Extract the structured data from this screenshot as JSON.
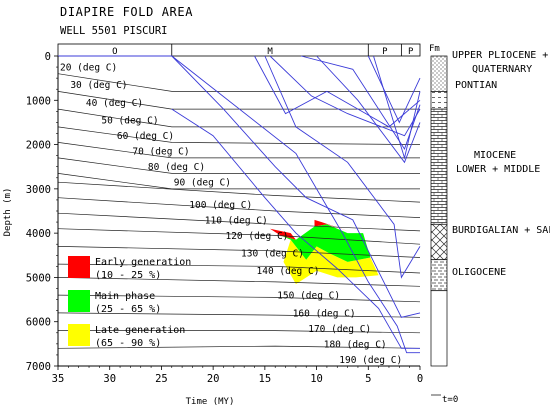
{
  "chart_data": {
    "type": "line",
    "title": "DIAPIRE  FOLD AREA",
    "subtitle": "WELL 5501 PISCURI",
    "xlabel": "Time (MY)",
    "ylabel": "Depth (m)",
    "xlim": [
      35,
      0
    ],
    "ylim": [
      7000,
      0
    ],
    "x_ticks": [
      "35",
      "30",
      "25",
      "20",
      "15",
      "10",
      "5",
      "0"
    ],
    "y_ticks": [
      "0",
      "1000",
      "2000",
      "3000",
      "4000",
      "5000",
      "6000",
      "7000"
    ],
    "periods": [
      {
        "label": "O",
        "from": 35,
        "to": 24
      },
      {
        "label": "M",
        "from": 24,
        "to": 5
      },
      {
        "label": "P",
        "from": 5,
        "to": 1.8
      },
      {
        "label": "P",
        "from": 1.8,
        "to": 0
      }
    ],
    "isotherms": [
      {
        "label": "20 (deg C)",
        "points": [
          [
            35,
            400
          ],
          [
            24,
            800
          ],
          [
            0,
            800
          ]
        ]
      },
      {
        "label": "30 (deg C)",
        "points": [
          [
            35,
            800
          ],
          [
            24,
            1200
          ],
          [
            0,
            1200
          ]
        ]
      },
      {
        "label": "40 (deg C)",
        "points": [
          [
            35,
            1200
          ],
          [
            24,
            1600
          ],
          [
            0,
            1600
          ]
        ]
      },
      {
        "label": "50 (deg C)",
        "points": [
          [
            35,
            1600
          ],
          [
            24,
            1950
          ],
          [
            0,
            2000
          ]
        ]
      },
      {
        "label": "60 (deg C)",
        "points": [
          [
            35,
            1950
          ],
          [
            24,
            2300
          ],
          [
            0,
            2300
          ]
        ]
      },
      {
        "label": "70 (deg C)",
        "points": [
          [
            35,
            2300
          ],
          [
            24,
            2650
          ],
          [
            0,
            2650
          ]
        ]
      },
      {
        "label": "80 (deg C)",
        "points": [
          [
            35,
            2650
          ],
          [
            24,
            3000
          ],
          [
            0,
            3000
          ]
        ]
      },
      {
        "label": "90 (deg C)",
        "points": [
          [
            35,
            2850
          ],
          [
            14,
            3150
          ],
          [
            0,
            3300
          ]
        ]
      },
      {
        "label": "100 (deg C)",
        "points": [
          [
            35,
            3200
          ],
          [
            14,
            3500
          ],
          [
            0,
            3650
          ]
        ]
      },
      {
        "label": "110 (deg C)",
        "points": [
          [
            35,
            3550
          ],
          [
            14,
            3800
          ],
          [
            0,
            3950
          ]
        ]
      },
      {
        "label": "120 (deg C)",
        "points": [
          [
            35,
            3900
          ],
          [
            14,
            4050
          ],
          [
            0,
            4250
          ]
        ]
      },
      {
        "label": "130 (deg C)",
        "points": [
          [
            35,
            4300
          ],
          [
            14,
            4400
          ],
          [
            0,
            4550
          ]
        ]
      },
      {
        "label": "140 (deg C)",
        "points": [
          [
            35,
            4700
          ],
          [
            14,
            4750
          ],
          [
            0,
            4900
          ]
        ]
      },
      {
        "label": "150 (deg C)",
        "points": [
          [
            35,
            5000
          ],
          [
            14,
            5100
          ],
          [
            0,
            5200
          ]
        ]
      },
      {
        "label": "160 (deg C)",
        "points": [
          [
            35,
            5400
          ],
          [
            14,
            5450
          ],
          [
            0,
            5550
          ]
        ]
      },
      {
        "label": "170 (deg C)",
        "points": [
          [
            35,
            5800
          ],
          [
            14,
            5850
          ],
          [
            0,
            5900
          ]
        ]
      },
      {
        "label": "180 (deg C)",
        "points": [
          [
            35,
            6200
          ],
          [
            14,
            6200
          ],
          [
            0,
            6250
          ]
        ]
      },
      {
        "label": "190 (deg C)",
        "points": [
          [
            35,
            6600
          ],
          [
            14,
            6550
          ],
          [
            0,
            6600
          ]
        ]
      }
    ],
    "burial_curves": [
      {
        "points": [
          [
            35,
            0
          ],
          [
            24,
            0
          ],
          [
            12,
            2200
          ],
          [
            7.5,
            4000
          ],
          [
            5,
            5100
          ],
          [
            2.2,
            6100
          ],
          [
            1.3,
            6700
          ],
          [
            0,
            6700
          ]
        ]
      },
      {
        "points": [
          [
            24,
            1200
          ],
          [
            20,
            1800
          ],
          [
            15,
            3200
          ],
          [
            12,
            4000
          ],
          [
            8,
            4800
          ],
          [
            4,
            5700
          ],
          [
            1.8,
            6600
          ],
          [
            0,
            6600
          ]
        ]
      },
      {
        "points": [
          [
            24,
            0
          ],
          [
            19,
            1200
          ],
          [
            14,
            2500
          ],
          [
            11,
            3200
          ],
          [
            6.5,
            3700
          ],
          [
            1.8,
            5900
          ],
          [
            0,
            5800
          ]
        ]
      },
      {
        "points": [
          [
            15,
            0
          ],
          [
            12,
            1600
          ],
          [
            7,
            2400
          ],
          [
            2.5,
            3800
          ],
          [
            1.8,
            5000
          ],
          [
            0,
            4300
          ]
        ]
      },
      {
        "points": [
          [
            5,
            0
          ],
          [
            2,
            1500
          ],
          [
            0,
            500
          ]
        ]
      },
      {
        "points": [
          [
            4.5,
            0
          ],
          [
            1.5,
            2300
          ],
          [
            0,
            800
          ]
        ]
      },
      {
        "points": [
          [
            10,
            0
          ],
          [
            6,
            1000
          ],
          [
            1.5,
            2400
          ],
          [
            0,
            1500
          ]
        ]
      },
      {
        "points": [
          [
            11.5,
            0
          ],
          [
            6.5,
            300
          ],
          [
            1.5,
            2100
          ],
          [
            0,
            1100
          ]
        ]
      },
      {
        "points": [
          [
            16,
            0
          ],
          [
            13,
            1300
          ],
          [
            9,
            800
          ],
          [
            3,
            1600
          ],
          [
            0,
            1000
          ]
        ]
      },
      {
        "points": [
          [
            14.5,
            0
          ],
          [
            10.5,
            900
          ],
          [
            7,
            1300
          ],
          [
            1.5,
            1800
          ],
          [
            0,
            1200
          ]
        ]
      }
    ],
    "generation_zones": [
      {
        "name": "Late generation",
        "range": "(65 - 90 %)",
        "color": "#ffff00",
        "polygon": [
          [
            12.5,
            4150
          ],
          [
            11,
            4600
          ],
          [
            10,
            4300
          ],
          [
            8.8,
            4450
          ],
          [
            7,
            4650
          ],
          [
            4.8,
            4550
          ],
          [
            4,
            4950
          ],
          [
            6.2,
            5000
          ],
          [
            8,
            5000
          ],
          [
            10,
            4850
          ],
          [
            12,
            5150
          ],
          [
            13.2,
            4650
          ]
        ]
      },
      {
        "name": "Main phase",
        "range": "(25 - 65 %)",
        "color": "#00ff00",
        "polygon": [
          [
            13.5,
            4050
          ],
          [
            12,
            4150
          ],
          [
            10.2,
            3850
          ],
          [
            9,
            3800
          ],
          [
            7,
            4000
          ],
          [
            5.5,
            4000
          ],
          [
            4.8,
            4550
          ],
          [
            7,
            4650
          ],
          [
            8.8,
            4450
          ],
          [
            10,
            4300
          ],
          [
            11,
            4600
          ],
          [
            12.5,
            4150
          ]
        ]
      },
      {
        "name": "Early generation",
        "range": "(10 - 25 %)",
        "color": "#ff0000",
        "polygon": [
          [
            14.5,
            3900
          ],
          [
            12.5,
            4000
          ],
          [
            12,
            4150
          ],
          [
            13.5,
            4050
          ]
        ]
      },
      {
        "name": "",
        "range": "",
        "color": "#ff0000",
        "polygon": [
          [
            10.2,
            3700
          ],
          [
            9.5,
            3750
          ],
          [
            7,
            3950
          ],
          [
            9,
            3800
          ],
          [
            10.2,
            3850
          ]
        ]
      }
    ],
    "formations": [
      {
        "label": "UPPER PLIOCENE +",
        "from": 0,
        "to": 800
      },
      {
        "label": "QUATERNARY",
        "from": 0,
        "to": 800
      },
      {
        "label": "PONTIAN",
        "from": 800,
        "to": 1200
      },
      {
        "label": "MIOCENE",
        "from": 1200,
        "to": 3800
      },
      {
        "label": "LOWER + MIDDLE",
        "from": 1200,
        "to": 3800
      },
      {
        "label": "BURDIGALIAN + SALT",
        "from": 3800,
        "to": 4600
      },
      {
        "label": "OLIGOCENE",
        "from": 4600,
        "to": 5300
      }
    ],
    "column_header": "Fm",
    "column_footer": "t=0",
    "grid": false
  }
}
